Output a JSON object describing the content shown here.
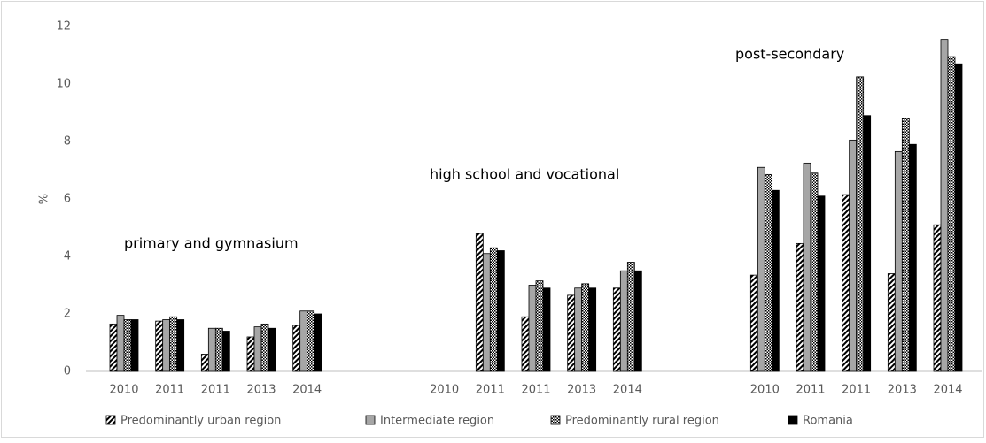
{
  "chart_data": {
    "type": "bar",
    "y_label": "%",
    "categories": [
      "2010",
      "2011",
      "2011",
      "2013",
      "2014",
      null,
      null,
      "2010",
      "2011",
      "2011",
      "2013",
      "2014",
      null,
      null,
      "2010",
      "2011",
      "2011",
      "2013",
      "2014"
    ],
    "series": [
      {
        "name": "Predominantly urban region",
        "color": "#000000",
        "pattern": "diagonal",
        "values": [
          1.65,
          1.75,
          0.6,
          1.2,
          1.6,
          null,
          null,
          null,
          4.8,
          1.9,
          2.65,
          2.9,
          null,
          null,
          3.35,
          4.45,
          6.15,
          3.4,
          5.1
        ]
      },
      {
        "name": "Intermediate region",
        "color": "#a6a6a6",
        "pattern": "solid",
        "values": [
          1.95,
          1.8,
          1.5,
          1.55,
          2.1,
          null,
          null,
          null,
          4.1,
          3.0,
          2.9,
          3.5,
          null,
          null,
          7.1,
          7.25,
          8.05,
          7.65,
          11.55
        ]
      },
      {
        "name": "Predominantly rural region",
        "color": "#000000",
        "pattern": "checker",
        "values": [
          1.8,
          1.9,
          1.5,
          1.65,
          2.1,
          null,
          null,
          null,
          4.3,
          3.15,
          3.05,
          3.8,
          null,
          null,
          6.85,
          6.9,
          10.25,
          8.8,
          10.95
        ]
      },
      {
        "name": "Romania",
        "color": "#000000",
        "pattern": "solid",
        "values": [
          1.8,
          1.8,
          1.4,
          1.5,
          2.0,
          null,
          null,
          null,
          4.2,
          2.9,
          2.9,
          3.5,
          null,
          null,
          6.3,
          6.1,
          8.9,
          7.9,
          10.7
        ]
      }
    ],
    "annotations": [
      "primary and gymnasium",
      "high school and vocational",
      "post-secondary"
    ],
    "ylim": [
      0,
      12
    ],
    "yticks": [
      0,
      2,
      4,
      6,
      8,
      10,
      12
    ],
    "grid": false,
    "legend": "bottom"
  }
}
